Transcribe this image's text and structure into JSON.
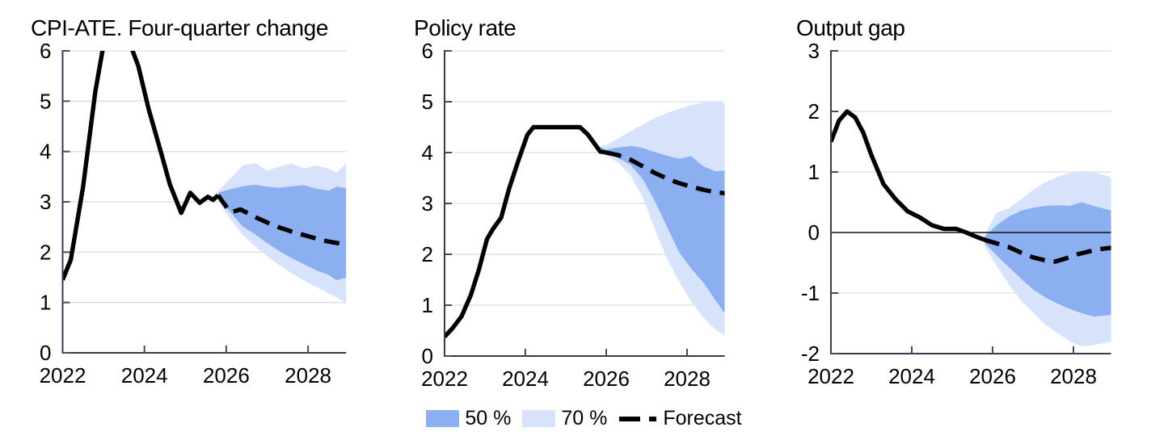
{
  "colors": {
    "band50": "#8BAFF0",
    "band70": "#D7E3FA",
    "line": "#000000",
    "grid": "#DCDCDC",
    "axis": "#333B4D",
    "tick": "#444C5C",
    "zero_line": "#111111",
    "background": "#FFFFFF"
  },
  "legend": {
    "items": [
      {
        "type": "band",
        "label": "50 %",
        "color": "#8BAFF0"
      },
      {
        "type": "band",
        "label": "70 %",
        "color": "#D7E3FA"
      },
      {
        "type": "dash",
        "label": "Forecast",
        "color": "#000000"
      }
    ]
  },
  "chart_data": [
    {
      "type": "line",
      "title": "CPI-ATE. Four-quarter change",
      "xlabel": "",
      "ylabel": "",
      "ylim": [
        0,
        6
      ],
      "yticks": [
        0,
        1,
        2,
        3,
        4,
        5,
        6
      ],
      "xlim": [
        2022,
        2028.93
      ],
      "xticks": [
        2022,
        2024,
        2026,
        2028
      ],
      "zero_line": false,
      "grid": true,
      "history": {
        "x": [
          2022.0,
          2022.2,
          2022.5,
          2022.8,
          2023.05,
          2023.3,
          2023.55,
          2023.85,
          2024.1,
          2024.4,
          2024.62,
          2024.9,
          2025.12,
          2025.35,
          2025.55,
          2025.68,
          2025.8
        ],
        "y": [
          1.45,
          1.85,
          3.3,
          5.2,
          6.35,
          6.9,
          6.35,
          5.7,
          4.85,
          4.0,
          3.35,
          2.78,
          3.18,
          2.98,
          3.1,
          3.04,
          3.13
        ]
      },
      "forecast": {
        "x": [
          2025.8,
          2026.1,
          2026.35,
          2026.7,
          2027.0,
          2027.3,
          2027.6,
          2027.9,
          2028.2,
          2028.5,
          2028.95
        ],
        "y": [
          3.13,
          2.79,
          2.85,
          2.7,
          2.59,
          2.49,
          2.41,
          2.34,
          2.27,
          2.21,
          2.15
        ]
      },
      "band70": {
        "x": [
          2025.8,
          2026.1,
          2026.4,
          2026.7,
          2027.0,
          2027.3,
          2027.6,
          2027.9,
          2028.2,
          2028.5,
          2028.7,
          2028.95
        ],
        "hi": [
          3.22,
          3.46,
          3.72,
          3.77,
          3.62,
          3.7,
          3.76,
          3.66,
          3.73,
          3.66,
          3.58,
          3.78
        ],
        "lo": [
          3.0,
          2.66,
          2.34,
          2.12,
          1.92,
          1.74,
          1.58,
          1.44,
          1.31,
          1.18,
          1.1,
          0.98
        ]
      },
      "band50": {
        "x": [
          2025.8,
          2026.1,
          2026.4,
          2026.7,
          2027.0,
          2027.3,
          2027.6,
          2027.9,
          2028.2,
          2028.5,
          2028.7,
          2028.95
        ],
        "hi": [
          3.18,
          3.25,
          3.31,
          3.34,
          3.3,
          3.28,
          3.31,
          3.33,
          3.26,
          3.22,
          3.3,
          3.27
        ],
        "lo": [
          3.06,
          2.8,
          2.51,
          2.36,
          2.18,
          2.02,
          1.88,
          1.76,
          1.64,
          1.55,
          1.44,
          1.5
        ]
      }
    },
    {
      "type": "line",
      "title": "Policy rate",
      "xlabel": "",
      "ylabel": "",
      "ylim": [
        0,
        6
      ],
      "yticks": [
        0,
        1,
        2,
        3,
        4,
        5,
        6
      ],
      "xlim": [
        2022,
        2028.93
      ],
      "xticks": [
        2022,
        2024,
        2026,
        2028
      ],
      "zero_line": false,
      "grid": true,
      "history": {
        "x": [
          2022.0,
          2022.2,
          2022.42,
          2022.65,
          2022.85,
          2023.05,
          2023.2,
          2023.4,
          2023.6,
          2023.85,
          2024.05,
          2024.2,
          2025.35,
          2025.55,
          2025.85,
          2026.0
        ],
        "y": [
          0.38,
          0.55,
          0.78,
          1.2,
          1.7,
          2.3,
          2.5,
          2.72,
          3.3,
          3.9,
          4.35,
          4.5,
          4.5,
          4.35,
          4.02,
          4.0
        ]
      },
      "forecast": {
        "x": [
          2026.0,
          2026.3,
          2026.6,
          2026.9,
          2027.2,
          2027.5,
          2027.8,
          2028.1,
          2028.4,
          2028.7,
          2028.95
        ],
        "y": [
          4.0,
          3.95,
          3.86,
          3.73,
          3.6,
          3.49,
          3.4,
          3.33,
          3.27,
          3.22,
          3.2
        ]
      },
      "band70": {
        "x": [
          2025.85,
          2026.0,
          2026.3,
          2026.6,
          2026.9,
          2027.2,
          2027.5,
          2027.8,
          2028.1,
          2028.4,
          2028.7,
          2028.95
        ],
        "hi": [
          4.12,
          4.15,
          4.28,
          4.42,
          4.55,
          4.68,
          4.78,
          4.86,
          4.93,
          4.98,
          5.0,
          4.97
        ],
        "lo": [
          4.08,
          3.95,
          3.8,
          3.55,
          3.12,
          2.5,
          1.92,
          1.47,
          1.07,
          0.76,
          0.52,
          0.4
        ]
      },
      "band50": {
        "x": [
          2025.85,
          2026.0,
          2026.3,
          2026.6,
          2026.9,
          2027.2,
          2027.5,
          2027.8,
          2028.1,
          2028.4,
          2028.7,
          2028.95
        ],
        "hi": [
          4.11,
          4.06,
          4.1,
          4.13,
          4.09,
          4.01,
          3.94,
          3.88,
          3.93,
          3.73,
          3.63,
          3.65
        ],
        "lo": [
          4.09,
          4.0,
          3.89,
          3.76,
          3.48,
          3.05,
          2.55,
          2.05,
          1.72,
          1.45,
          1.1,
          0.82
        ]
      }
    },
    {
      "type": "line",
      "title": "Output gap",
      "xlabel": "",
      "ylabel": "",
      "ylim": [
        -2,
        3
      ],
      "yticks": [
        -2,
        -1,
        0,
        1,
        2,
        3
      ],
      "xlim": [
        2022,
        2028.93
      ],
      "xticks": [
        2022,
        2024,
        2026,
        2028
      ],
      "zero_line": true,
      "grid": true,
      "history": {
        "x": [
          2022.0,
          2022.2,
          2022.4,
          2022.6,
          2022.8,
          2023.0,
          2023.3,
          2023.6,
          2023.9,
          2024.2,
          2024.5,
          2024.8,
          2025.1,
          2025.35,
          2025.6,
          2025.8
        ],
        "y": [
          1.5,
          1.85,
          2.0,
          1.9,
          1.65,
          1.28,
          0.8,
          0.55,
          0.35,
          0.25,
          0.12,
          0.06,
          0.06,
          0.0,
          -0.07,
          -0.12
        ]
      },
      "forecast": {
        "x": [
          2025.8,
          2026.1,
          2026.4,
          2026.7,
          2027.0,
          2027.3,
          2027.55,
          2027.8,
          2028.1,
          2028.4,
          2028.7,
          2028.95
        ],
        "y": [
          -0.12,
          -0.18,
          -0.24,
          -0.33,
          -0.41,
          -0.46,
          -0.48,
          -0.43,
          -0.36,
          -0.31,
          -0.27,
          -0.25
        ]
      },
      "band70": {
        "x": [
          2025.8,
          2026.1,
          2026.4,
          2026.7,
          2027.0,
          2027.3,
          2027.6,
          2027.9,
          2028.2,
          2028.5,
          2028.95
        ],
        "hi": [
          -0.04,
          0.33,
          0.4,
          0.55,
          0.7,
          0.83,
          0.92,
          0.98,
          1.0,
          1.0,
          0.91
        ],
        "lo": [
          -0.22,
          -0.55,
          -0.85,
          -1.12,
          -1.32,
          -1.52,
          -1.66,
          -1.79,
          -1.88,
          -1.86,
          -1.8
        ]
      },
      "band50": {
        "x": [
          2025.8,
          2026.1,
          2026.4,
          2026.7,
          2027.0,
          2027.3,
          2027.6,
          2027.9,
          2028.2,
          2028.5,
          2028.95
        ],
        "hi": [
          -0.07,
          0.12,
          0.26,
          0.36,
          0.41,
          0.44,
          0.45,
          0.44,
          0.5,
          0.44,
          0.36
        ],
        "lo": [
          -0.17,
          -0.38,
          -0.57,
          -0.76,
          -0.94,
          -1.07,
          -1.17,
          -1.26,
          -1.33,
          -1.39,
          -1.36
        ]
      }
    }
  ]
}
